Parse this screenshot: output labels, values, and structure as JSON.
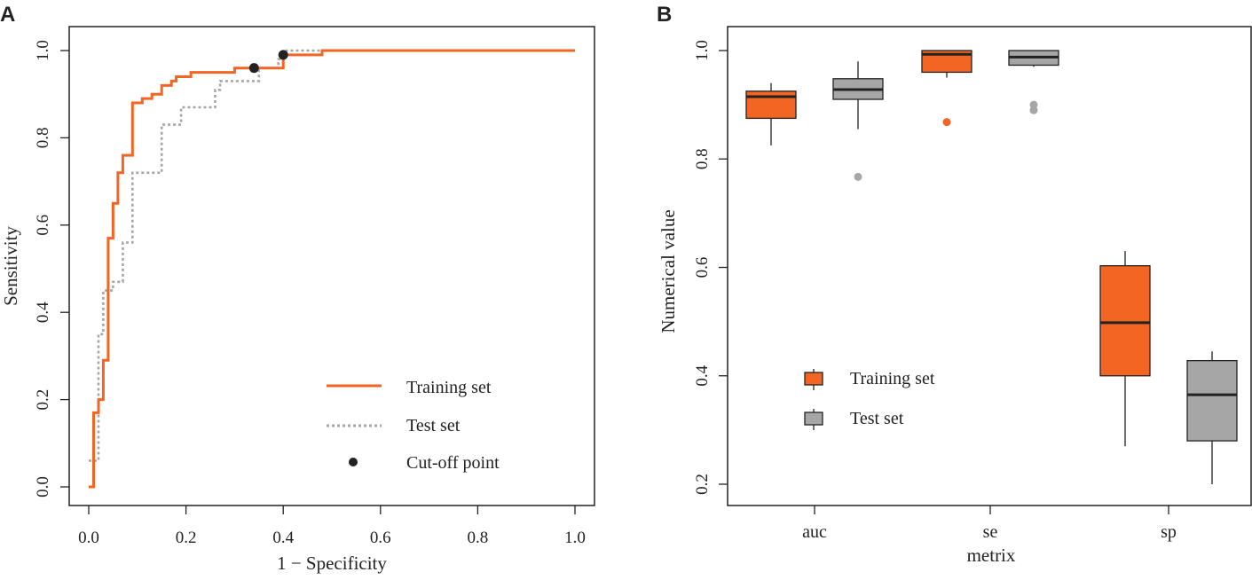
{
  "colors": {
    "training": "#f26522",
    "test": "#a6a6a6",
    "cutoff": "#222222",
    "axis": "#222222"
  },
  "chart_data": [
    {
      "panel": "A",
      "type": "line",
      "xlabel": "1 − Specificity",
      "ylabel": "Sensitivity",
      "xlim": [
        0,
        1
      ],
      "ylim": [
        0,
        1
      ],
      "xticks": [
        0.0,
        0.2,
        0.4,
        0.6,
        0.8,
        1.0
      ],
      "xtick_labels": [
        "0.0",
        "0.2",
        "0.4",
        "0.6",
        "0.8",
        "1.0"
      ],
      "yticks": [
        0.0,
        0.2,
        0.4,
        0.6,
        0.8,
        1.0
      ],
      "ytick_labels": [
        "0.0",
        "0.2",
        "0.4",
        "0.6",
        "0.8",
        "1.0"
      ],
      "legend": {
        "position": "bottom-right",
        "entries": [
          {
            "label": "Training set",
            "style": "solid"
          },
          {
            "label": "Test set",
            "style": "dotted"
          },
          {
            "label": "Cut-off point",
            "style": "point"
          }
        ]
      },
      "series": [
        {
          "name": "Training set",
          "x": [
            0,
            0.01,
            0.01,
            0.02,
            0.02,
            0.03,
            0.03,
            0.04,
            0.04,
            0.05,
            0.05,
            0.06,
            0.06,
            0.07,
            0.07,
            0.09,
            0.09,
            0.1,
            0.1,
            0.11,
            0.11,
            0.13,
            0.13,
            0.15,
            0.15,
            0.17,
            0.17,
            0.18,
            0.18,
            0.21,
            0.21,
            0.3,
            0.3,
            0.34,
            0.34,
            0.4,
            0.4,
            0.48,
            0.48,
            1.0
          ],
          "y": [
            0,
            0,
            0.17,
            0.17,
            0.2,
            0.2,
            0.29,
            0.29,
            0.57,
            0.57,
            0.65,
            0.65,
            0.72,
            0.72,
            0.76,
            0.76,
            0.88,
            0.88,
            0.88,
            0.88,
            0.89,
            0.89,
            0.9,
            0.9,
            0.92,
            0.92,
            0.93,
            0.93,
            0.94,
            0.94,
            0.95,
            0.95,
            0.96,
            0.96,
            0.96,
            0.96,
            0.99,
            0.99,
            1.0,
            1.0
          ]
        },
        {
          "name": "Test set",
          "x": [
            0,
            0.02,
            0.02,
            0.03,
            0.03,
            0.05,
            0.05,
            0.07,
            0.07,
            0.09,
            0.09,
            0.11,
            0.11,
            0.15,
            0.15,
            0.19,
            0.19,
            0.26,
            0.26,
            0.27,
            0.27,
            0.35,
            0.35,
            0.39,
            0.39,
            0.4,
            0.4,
            0.44,
            0.44,
            1.0
          ],
          "y": [
            0.06,
            0.06,
            0.35,
            0.35,
            0.45,
            0.45,
            0.47,
            0.47,
            0.56,
            0.56,
            0.72,
            0.72,
            0.72,
            0.72,
            0.83,
            0.83,
            0.87,
            0.87,
            0.91,
            0.91,
            0.93,
            0.93,
            0.96,
            0.96,
            0.98,
            0.98,
            1.0,
            1.0,
            1.0,
            1.0
          ]
        }
      ],
      "cutoff_points": [
        {
          "x": 0.34,
          "y": 0.96
        },
        {
          "x": 0.4,
          "y": 0.99
        }
      ]
    },
    {
      "panel": "B",
      "type": "box",
      "xlabel": "metrix",
      "ylabel": "Numerical value",
      "categories": [
        "auc",
        "se",
        "sp"
      ],
      "ylim": [
        0.18,
        1.07
      ],
      "yticks": [
        0.2,
        0.4,
        0.6,
        0.8,
        1.0
      ],
      "ytick_labels": [
        "0.2",
        "0.4",
        "0.6",
        "0.8",
        "1.0"
      ],
      "legend": {
        "position": "bottom-left",
        "entries": [
          {
            "label": "Training set"
          },
          {
            "label": "Test set"
          }
        ]
      },
      "series": [
        {
          "name": "Training set",
          "boxes": [
            {
              "category": "auc",
              "min": 0.825,
              "q1": 0.875,
              "median": 0.915,
              "q3": 0.925,
              "max": 0.94,
              "outliers": []
            },
            {
              "category": "se",
              "min": 0.95,
              "q1": 0.96,
              "median": 0.993,
              "q3": 1.0,
              "max": 1.0,
              "outliers": [
                0.868
              ]
            },
            {
              "category": "sp",
              "min": 0.27,
              "q1": 0.4,
              "median": 0.498,
              "q3": 0.603,
              "max": 0.63,
              "outliers": []
            }
          ]
        },
        {
          "name": "Test set",
          "boxes": [
            {
              "category": "auc",
              "min": 0.855,
              "q1": 0.91,
              "median": 0.928,
              "q3": 0.948,
              "max": 0.98,
              "outliers": [
                0.767
              ]
            },
            {
              "category": "se",
              "min": 0.97,
              "q1": 0.973,
              "median": 0.988,
              "q3": 1.0,
              "max": 1.0,
              "outliers": [
                0.9,
                0.89
              ]
            },
            {
              "category": "sp",
              "min": 0.2,
              "q1": 0.28,
              "median": 0.365,
              "q3": 0.428,
              "max": 0.445,
              "outliers": []
            }
          ]
        }
      ]
    }
  ]
}
